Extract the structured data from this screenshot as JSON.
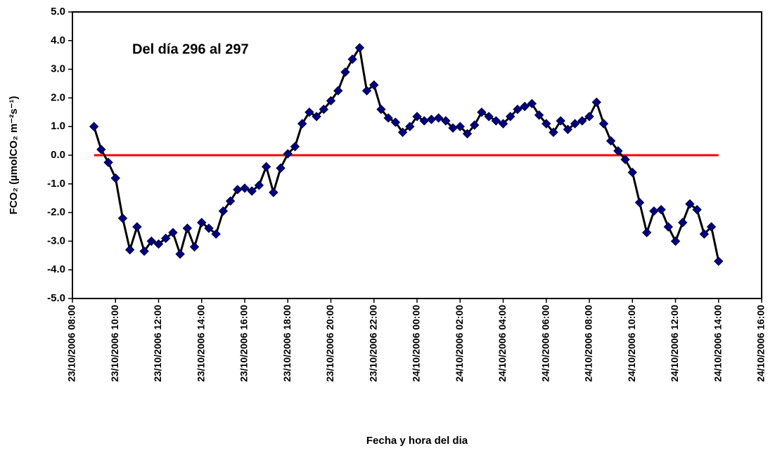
{
  "chart_data": {
    "type": "line",
    "annotation": "Del día 296 al 297",
    "xlabel": "Fecha y hora del dia",
    "ylabel": "FCO₂ (µmolCO₂ m⁻²s⁻¹)",
    "x": [
      "23/10/2006 09:00",
      "23/10/2006 09:20",
      "23/10/2006 09:40",
      "23/10/2006 10:00",
      "23/10/2006 10:20",
      "23/10/2006 10:40",
      "23/10/2006 11:00",
      "23/10/2006 11:20",
      "23/10/2006 11:40",
      "23/10/2006 12:00",
      "23/10/2006 12:20",
      "23/10/2006 12:40",
      "23/10/2006 13:00",
      "23/10/2006 13:20",
      "23/10/2006 13:40",
      "23/10/2006 14:00",
      "23/10/2006 14:20",
      "23/10/2006 14:40",
      "23/10/2006 15:00",
      "23/10/2006 15:20",
      "23/10/2006 15:40",
      "23/10/2006 16:00",
      "23/10/2006 16:20",
      "23/10/2006 16:40",
      "23/10/2006 17:00",
      "23/10/2006 17:20",
      "23/10/2006 17:40",
      "23/10/2006 18:00",
      "23/10/2006 18:20",
      "23/10/2006 18:40",
      "23/10/2006 19:00",
      "23/10/2006 19:20",
      "23/10/2006 19:40",
      "23/10/2006 20:00",
      "23/10/2006 20:20",
      "23/10/2006 20:40",
      "23/10/2006 21:00",
      "23/10/2006 21:20",
      "23/10/2006 21:40",
      "23/10/2006 22:00",
      "23/10/2006 22:20",
      "23/10/2006 22:40",
      "23/10/2006 23:00",
      "23/10/2006 23:20",
      "23/10/2006 23:40",
      "24/10/2006 00:00",
      "24/10/2006 00:20",
      "24/10/2006 00:40",
      "24/10/2006 01:00",
      "24/10/2006 01:20",
      "24/10/2006 01:40",
      "24/10/2006 02:00",
      "24/10/2006 02:20",
      "24/10/2006 02:40",
      "24/10/2006 03:00",
      "24/10/2006 03:20",
      "24/10/2006 03:40",
      "24/10/2006 04:00",
      "24/10/2006 04:20",
      "24/10/2006 04:40",
      "24/10/2006 05:00",
      "24/10/2006 05:20",
      "24/10/2006 05:40",
      "24/10/2006 06:00",
      "24/10/2006 06:20",
      "24/10/2006 06:40",
      "24/10/2006 07:00",
      "24/10/2006 07:20",
      "24/10/2006 07:40",
      "24/10/2006 08:00",
      "24/10/2006 08:20",
      "24/10/2006 08:40",
      "24/10/2006 09:00",
      "24/10/2006 09:20",
      "24/10/2006 09:40",
      "24/10/2006 10:00",
      "24/10/2006 10:20",
      "24/10/2006 10:40",
      "24/10/2006 11:00",
      "24/10/2006 11:20",
      "24/10/2006 11:40",
      "24/10/2006 12:00",
      "24/10/2006 12:20",
      "24/10/2006 12:40",
      "24/10/2006 13:00",
      "24/10/2006 13:20",
      "24/10/2006 13:40",
      "24/10/2006 14:00"
    ],
    "series": [
      {
        "color": "#000000",
        "marker_color": "#000080",
        "values": [
          1.0,
          0.2,
          -0.25,
          -0.8,
          -2.2,
          -3.3,
          -2.5,
          -3.35,
          -3.0,
          -3.1,
          -2.9,
          -2.7,
          -3.45,
          -2.55,
          -3.2,
          -2.35,
          -2.55,
          -2.75,
          -1.95,
          -1.6,
          -1.2,
          -1.15,
          -1.25,
          -1.05,
          -0.4,
          -1.3,
          -0.45,
          0.05,
          0.3,
          1.1,
          1.5,
          1.35,
          1.6,
          1.9,
          2.25,
          2.9,
          3.35,
          3.75,
          2.25,
          2.45,
          1.6,
          1.3,
          1.15,
          0.8,
          1.0,
          1.35,
          1.2,
          1.25,
          1.3,
          1.2,
          0.95,
          1.0,
          0.75,
          1.05,
          1.5,
          1.35,
          1.2,
          1.1,
          1.35,
          1.6,
          1.7,
          1.8,
          1.4,
          1.1,
          0.8,
          1.2,
          0.9,
          1.1,
          1.2,
          1.35,
          1.85,
          1.1,
          0.5,
          0.15,
          -0.15,
          -0.6,
          -1.65,
          -2.7,
          -1.95,
          -1.9,
          -2.5,
          -3.0,
          -2.35,
          -1.7,
          -1.9,
          -2.75,
          -2.5,
          -3.7
        ]
      }
    ],
    "hline": {
      "y": 0,
      "color": "#ff0000"
    },
    "xlim": [
      "23/10/2006 08:00",
      "24/10/2006 16:00"
    ],
    "xticks": [
      "23/10/2006 08:00",
      "23/10/2006 10:00",
      "23/10/2006 12:00",
      "23/10/2006 14:00",
      "23/10/2006 16:00",
      "23/10/2006 18:00",
      "23/10/2006 20:00",
      "23/10/2006 22:00",
      "24/10/2006 00:00",
      "24/10/2006 02:00",
      "24/10/2006 04:00",
      "24/10/2006 06:00",
      "24/10/2006 08:00",
      "24/10/2006 10:00",
      "24/10/2006 12:00",
      "24/10/2006 14:00",
      "24/10/2006 16:00"
    ],
    "ylim": [
      -5,
      5
    ],
    "yticks": [
      {
        "value": -5,
        "label": "-5.0"
      },
      {
        "value": -4,
        "label": "-4.0"
      },
      {
        "value": -3,
        "label": "-3.0"
      },
      {
        "value": -2,
        "label": "-2.0"
      },
      {
        "value": -1,
        "label": "-1.0"
      },
      {
        "value": 0,
        "label": "0.0"
      },
      {
        "value": 1,
        "label": "1.0"
      },
      {
        "value": 2,
        "label": "2.0"
      },
      {
        "value": 3,
        "label": "3.0"
      },
      {
        "value": 4,
        "label": "4.0"
      },
      {
        "value": 5,
        "label": "5.0"
      }
    ],
    "grid": false
  }
}
